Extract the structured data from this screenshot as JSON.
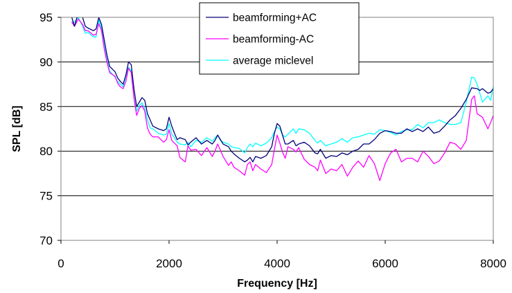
{
  "chart_data": {
    "type": "line",
    "xlabel": "Frequency [Hz]",
    "ylabel": "SPL [dB]",
    "xlim": [
      0,
      8000
    ],
    "ylim": [
      70,
      95
    ],
    "xticks": [
      0,
      2000,
      4000,
      6000,
      8000
    ],
    "yticks": [
      70,
      75,
      80,
      85,
      90,
      95
    ],
    "grid": "horizontal",
    "legend_position": "top-center",
    "series": [
      {
        "name": "beamforming+AC",
        "color": "#00007A",
        "points": [
          [
            200,
            95
          ],
          [
            250,
            94
          ],
          [
            320,
            95.5
          ],
          [
            400,
            95
          ],
          [
            450,
            94
          ],
          [
            500,
            93.8
          ],
          [
            600,
            93.5
          ],
          [
            650,
            93.7
          ],
          [
            700,
            95
          ],
          [
            750,
            94.2
          ],
          [
            800,
            92.5
          ],
          [
            850,
            90.8
          ],
          [
            900,
            89.5
          ],
          [
            1000,
            88.9
          ],
          [
            1050,
            88.2
          ],
          [
            1100,
            87.8
          ],
          [
            1150,
            87.5
          ],
          [
            1200,
            88.5
          ],
          [
            1250,
            90
          ],
          [
            1300,
            89.7
          ],
          [
            1350,
            87
          ],
          [
            1400,
            85
          ],
          [
            1450,
            85.5
          ],
          [
            1500,
            86
          ],
          [
            1550,
            85.7
          ],
          [
            1600,
            84.2
          ],
          [
            1650,
            83.5
          ],
          [
            1700,
            82.8
          ],
          [
            1800,
            82.5
          ],
          [
            1900,
            82.3
          ],
          [
            1950,
            82.5
          ],
          [
            2000,
            83.8
          ],
          [
            2050,
            82.8
          ],
          [
            2100,
            82
          ],
          [
            2150,
            81.3
          ],
          [
            2200,
            81.5
          ],
          [
            2300,
            81.3
          ],
          [
            2350,
            80.7
          ],
          [
            2400,
            81
          ],
          [
            2500,
            81.5
          ],
          [
            2600,
            80.8
          ],
          [
            2700,
            81.2
          ],
          [
            2800,
            80.8
          ],
          [
            2850,
            81.2
          ],
          [
            2900,
            81.8
          ],
          [
            2950,
            81.3
          ],
          [
            3000,
            80.8
          ],
          [
            3100,
            80.5
          ],
          [
            3150,
            80
          ],
          [
            3200,
            79.7
          ],
          [
            3300,
            79.2
          ],
          [
            3400,
            78.8
          ],
          [
            3450,
            79
          ],
          [
            3500,
            79.3
          ],
          [
            3550,
            78.8
          ],
          [
            3600,
            79.4
          ],
          [
            3700,
            79.2
          ],
          [
            3800,
            79.5
          ],
          [
            3900,
            80.5
          ],
          [
            3950,
            82
          ],
          [
            4000,
            83.1
          ],
          [
            4050,
            82.8
          ],
          [
            4100,
            81.8
          ],
          [
            4150,
            80.8
          ],
          [
            4200,
            80.8
          ],
          [
            4300,
            81.2
          ],
          [
            4350,
            80.6
          ],
          [
            4400,
            80.8
          ],
          [
            4500,
            81
          ],
          [
            4600,
            80.6
          ],
          [
            4700,
            79.8
          ],
          [
            4750,
            79.7
          ],
          [
            4800,
            80.2
          ],
          [
            4900,
            79.2
          ],
          [
            5000,
            79.5
          ],
          [
            5100,
            79.4
          ],
          [
            5200,
            79.8
          ],
          [
            5300,
            79.6
          ],
          [
            5400,
            80
          ],
          [
            5500,
            80.2
          ],
          [
            5600,
            80.8
          ],
          [
            5700,
            80.8
          ],
          [
            5800,
            81.3
          ],
          [
            5900,
            82
          ],
          [
            6000,
            82.3
          ],
          [
            6100,
            82.2
          ],
          [
            6200,
            82
          ],
          [
            6300,
            82
          ],
          [
            6400,
            82.5
          ],
          [
            6500,
            82.2
          ],
          [
            6600,
            82.5
          ],
          [
            6700,
            82.2
          ],
          [
            6800,
            82.7
          ],
          [
            6900,
            82
          ],
          [
            7000,
            82.2
          ],
          [
            7100,
            82.8
          ],
          [
            7200,
            83.5
          ],
          [
            7300,
            84
          ],
          [
            7400,
            84.8
          ],
          [
            7500,
            85.8
          ],
          [
            7600,
            87.1
          ],
          [
            7700,
            87
          ],
          [
            7750,
            86.8
          ],
          [
            7800,
            87
          ],
          [
            7900,
            86.5
          ],
          [
            7950,
            86.6
          ],
          [
            8000,
            87
          ]
        ]
      },
      {
        "name": "beamforming-AC",
        "color": "#FF00FF",
        "points": [
          [
            200,
            94.5
          ],
          [
            250,
            94
          ],
          [
            320,
            94.8
          ],
          [
            400,
            94.2
          ],
          [
            450,
            93.5
          ],
          [
            500,
            93.5
          ],
          [
            600,
            93
          ],
          [
            650,
            93.1
          ],
          [
            700,
            94.3
          ],
          [
            750,
            93.5
          ],
          [
            800,
            91.5
          ],
          [
            850,
            90
          ],
          [
            900,
            88.8
          ],
          [
            1000,
            88.4
          ],
          [
            1050,
            87.6
          ],
          [
            1100,
            87.2
          ],
          [
            1150,
            87
          ],
          [
            1200,
            87.8
          ],
          [
            1250,
            89.3
          ],
          [
            1300,
            88.8
          ],
          [
            1350,
            86
          ],
          [
            1400,
            84
          ],
          [
            1450,
            84.8
          ],
          [
            1500,
            85.1
          ],
          [
            1550,
            84.5
          ],
          [
            1600,
            82.6
          ],
          [
            1650,
            81.9
          ],
          [
            1700,
            81.6
          ],
          [
            1800,
            81.6
          ],
          [
            1900,
            81
          ],
          [
            1950,
            81.3
          ],
          [
            2000,
            82.4
          ],
          [
            2050,
            81.2
          ],
          [
            2100,
            80.9
          ],
          [
            2150,
            80.6
          ],
          [
            2200,
            79.3
          ],
          [
            2300,
            78.8
          ],
          [
            2350,
            80.6
          ],
          [
            2400,
            80.1
          ],
          [
            2500,
            80.2
          ],
          [
            2600,
            79.5
          ],
          [
            2700,
            80.4
          ],
          [
            2800,
            79.4
          ],
          [
            2850,
            80
          ],
          [
            2900,
            80.8
          ],
          [
            2950,
            80.1
          ],
          [
            3000,
            79.4
          ],
          [
            3100,
            78.4
          ],
          [
            3150,
            78.8
          ],
          [
            3200,
            78.2
          ],
          [
            3300,
            77.8
          ],
          [
            3400,
            77.3
          ],
          [
            3450,
            78.5
          ],
          [
            3500,
            78.8
          ],
          [
            3550,
            77.8
          ],
          [
            3600,
            78.5
          ],
          [
            3700,
            78
          ],
          [
            3800,
            77.6
          ],
          [
            3900,
            78.5
          ],
          [
            3950,
            80.2
          ],
          [
            4000,
            81.8
          ],
          [
            4050,
            80.9
          ],
          [
            4100,
            79.9
          ],
          [
            4150,
            79.2
          ],
          [
            4200,
            80.5
          ],
          [
            4300,
            80.2
          ],
          [
            4350,
            79.9
          ],
          [
            4400,
            80.4
          ],
          [
            4500,
            79.1
          ],
          [
            4600,
            78.5
          ],
          [
            4700,
            78.2
          ],
          [
            4750,
            77.8
          ],
          [
            4800,
            79
          ],
          [
            4900,
            77.5
          ],
          [
            5000,
            78
          ],
          [
            5100,
            77.8
          ],
          [
            5200,
            78.5
          ],
          [
            5300,
            77.2
          ],
          [
            5400,
            78.2
          ],
          [
            5500,
            78.9
          ],
          [
            5600,
            78.2
          ],
          [
            5700,
            79.5
          ],
          [
            5800,
            78.6
          ],
          [
            5900,
            76.7
          ],
          [
            6000,
            78.6
          ],
          [
            6100,
            79.8
          ],
          [
            6200,
            80.2
          ],
          [
            6300,
            78.8
          ],
          [
            6400,
            79.2
          ],
          [
            6500,
            79.2
          ],
          [
            6600,
            78.8
          ],
          [
            6700,
            80
          ],
          [
            6800,
            79.4
          ],
          [
            6900,
            78.6
          ],
          [
            7000,
            78.9
          ],
          [
            7100,
            79.8
          ],
          [
            7200,
            81
          ],
          [
            7300,
            80.8
          ],
          [
            7400,
            80.2
          ],
          [
            7500,
            81.2
          ],
          [
            7600,
            85.8
          ],
          [
            7650,
            86.2
          ],
          [
            7700,
            84.2
          ],
          [
            7800,
            83.8
          ],
          [
            7900,
            82.5
          ],
          [
            7950,
            83.2
          ],
          [
            8000,
            84
          ]
        ]
      },
      {
        "name": "average miclevel",
        "color": "#00FFFF",
        "points": [
          [
            200,
            94.3
          ],
          [
            250,
            94.5
          ],
          [
            320,
            95
          ],
          [
            400,
            94
          ],
          [
            450,
            93.2
          ],
          [
            500,
            93.3
          ],
          [
            600,
            92.8
          ],
          [
            650,
            92.8
          ],
          [
            700,
            94.7
          ],
          [
            750,
            93.8
          ],
          [
            800,
            91.8
          ],
          [
            850,
            90.2
          ],
          [
            900,
            89
          ],
          [
            1000,
            88.3
          ],
          [
            1050,
            87.8
          ],
          [
            1100,
            87.5
          ],
          [
            1150,
            87.2
          ],
          [
            1200,
            88.4
          ],
          [
            1250,
            89.4
          ],
          [
            1300,
            89
          ],
          [
            1350,
            86
          ],
          [
            1400,
            84.5
          ],
          [
            1450,
            85.1
          ],
          [
            1500,
            85.4
          ],
          [
            1550,
            84.8
          ],
          [
            1600,
            83.5
          ],
          [
            1650,
            82.6
          ],
          [
            1700,
            82.5
          ],
          [
            1800,
            82
          ],
          [
            1900,
            81.8
          ],
          [
            1950,
            81.9
          ],
          [
            2000,
            83.1
          ],
          [
            2050,
            81.9
          ],
          [
            2100,
            81.5
          ],
          [
            2150,
            81
          ],
          [
            2200,
            80.8
          ],
          [
            2300,
            80.7
          ],
          [
            2350,
            81
          ],
          [
            2400,
            80.5
          ],
          [
            2500,
            81.2
          ],
          [
            2600,
            81
          ],
          [
            2700,
            81.5
          ],
          [
            2800,
            81.1
          ],
          [
            2850,
            81.5
          ],
          [
            2900,
            81.8
          ],
          [
            2950,
            81.2
          ],
          [
            3000,
            81
          ],
          [
            3100,
            80.8
          ],
          [
            3150,
            80.5
          ],
          [
            3200,
            80.4
          ],
          [
            3300,
            80.3
          ],
          [
            3400,
            79.8
          ],
          [
            3450,
            80.4
          ],
          [
            3500,
            80.8
          ],
          [
            3550,
            80.5
          ],
          [
            3600,
            80.9
          ],
          [
            3700,
            80.6
          ],
          [
            3800,
            80.9
          ],
          [
            3900,
            81.5
          ],
          [
            3950,
            82.2
          ],
          [
            4000,
            82.7
          ],
          [
            4050,
            82.5
          ],
          [
            4100,
            81.8
          ],
          [
            4150,
            81.6
          ],
          [
            4200,
            81.9
          ],
          [
            4300,
            82.5
          ],
          [
            4350,
            82
          ],
          [
            4400,
            82.5
          ],
          [
            4500,
            82.4
          ],
          [
            4600,
            82
          ],
          [
            4700,
            81.2
          ],
          [
            4750,
            80.9
          ],
          [
            4800,
            81.2
          ],
          [
            4900,
            80.6
          ],
          [
            5000,
            80.8
          ],
          [
            5100,
            81
          ],
          [
            5200,
            81.4
          ],
          [
            5300,
            81
          ],
          [
            5400,
            81.5
          ],
          [
            5500,
            81.6
          ],
          [
            5600,
            81.8
          ],
          [
            5700,
            82
          ],
          [
            5800,
            81.9
          ],
          [
            5900,
            82.4
          ],
          [
            6000,
            82.3
          ],
          [
            6100,
            82.1
          ],
          [
            6200,
            81.8
          ],
          [
            6300,
            82.2
          ],
          [
            6400,
            82.4
          ],
          [
            6500,
            82.4
          ],
          [
            6600,
            83
          ],
          [
            6700,
            82.6
          ],
          [
            6800,
            83.2
          ],
          [
            6900,
            83.2
          ],
          [
            7000,
            83.5
          ],
          [
            7100,
            83.2
          ],
          [
            7200,
            83
          ],
          [
            7300,
            83
          ],
          [
            7400,
            83.2
          ],
          [
            7500,
            85.5
          ],
          [
            7600,
            88.3
          ],
          [
            7650,
            88.2
          ],
          [
            7700,
            87.5
          ],
          [
            7800,
            85.5
          ],
          [
            7900,
            86.2
          ],
          [
            7950,
            85.7
          ],
          [
            8000,
            87.3
          ]
        ]
      }
    ]
  }
}
